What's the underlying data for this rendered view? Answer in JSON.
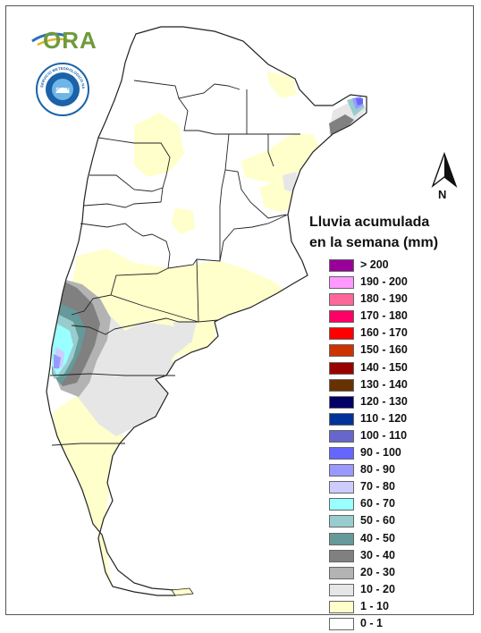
{
  "logo": {
    "text": "ORA"
  },
  "seal": {
    "text": "SERVICIO METEOROLOGICO NACIONAL · ARGENTINA",
    "center_text": "SMN"
  },
  "north_arrow": {
    "label": "N"
  },
  "legend": {
    "title_line1": "Lluvia acumulada",
    "title_line2": "en la semana (mm)",
    "items": [
      {
        "label": "> 200",
        "color": "#990099"
      },
      {
        "label": "190 - 200",
        "color": "#ff99ff"
      },
      {
        "label": "180 - 190",
        "color": "#ff6699"
      },
      {
        "label": "170 - 180",
        "color": "#ff0066"
      },
      {
        "label": "160 - 170",
        "color": "#ff0000"
      },
      {
        "label": "150 - 160",
        "color": "#cc3300"
      },
      {
        "label": "140 - 150",
        "color": "#990000"
      },
      {
        "label": "130 - 140",
        "color": "#663300"
      },
      {
        "label": "120 - 130",
        "color": "#000066"
      },
      {
        "label": "110 - 120",
        "color": "#003399"
      },
      {
        "label": "100 - 110",
        "color": "#6666cc"
      },
      {
        "label": "90 - 100",
        "color": "#6666ff"
      },
      {
        "label": "80 - 90",
        "color": "#9999ff"
      },
      {
        "label": "70 - 80",
        "color": "#ccccff"
      },
      {
        "label": "60 - 70",
        "color": "#99ffff"
      },
      {
        "label": "50 - 60",
        "color": "#99cccc"
      },
      {
        "label": "40 - 50",
        "color": "#669999"
      },
      {
        "label": "30 - 40",
        "color": "#808080"
      },
      {
        "label": "20 - 30",
        "color": "#b3b3b3"
      },
      {
        "label": "10 - 20",
        "color": "#e6e6e6"
      },
      {
        "label": "1 - 10",
        "color": "#ffffcc"
      },
      {
        "label": "0 - 1",
        "color": "#ffffff"
      }
    ]
  }
}
